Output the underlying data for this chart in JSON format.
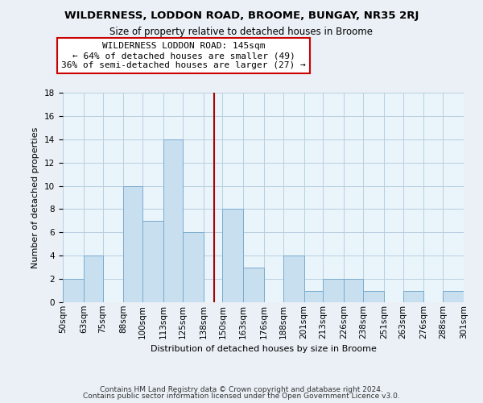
{
  "title": "WILDERNESS, LODDON ROAD, BROOME, BUNGAY, NR35 2RJ",
  "subtitle": "Size of property relative to detached houses in Broome",
  "xlabel": "Distribution of detached houses by size in Broome",
  "ylabel": "Number of detached properties",
  "bin_labels": [
    "50sqm",
    "63sqm",
    "75sqm",
    "88sqm",
    "100sqm",
    "113sqm",
    "125sqm",
    "138sqm",
    "150sqm",
    "163sqm",
    "176sqm",
    "188sqm",
    "201sqm",
    "213sqm",
    "226sqm",
    "238sqm",
    "251sqm",
    "263sqm",
    "276sqm",
    "288sqm",
    "301sqm"
  ],
  "bin_edges": [
    50,
    63,
    75,
    88,
    100,
    113,
    125,
    138,
    150,
    163,
    176,
    188,
    201,
    213,
    226,
    238,
    251,
    263,
    276,
    288,
    301
  ],
  "counts": [
    2,
    4,
    0,
    10,
    7,
    14,
    6,
    0,
    8,
    3,
    0,
    4,
    1,
    2,
    2,
    1,
    0,
    1,
    0,
    1
  ],
  "bar_color": "#c8dff0",
  "bar_edge_color": "#7aabce",
  "ref_line_x": 145,
  "ref_line_color": "#aa0000",
  "annotation_line1": "WILDERNESS LODDON ROAD: 145sqm",
  "annotation_line2": "← 64% of detached houses are smaller (49)",
  "annotation_line3": "36% of semi-detached houses are larger (27) →",
  "annotation_box_edge_color": "#cc0000",
  "annotation_box_bg": "#ffffff",
  "ylim": [
    0,
    18
  ],
  "yticks": [
    0,
    2,
    4,
    6,
    8,
    10,
    12,
    14,
    16,
    18
  ],
  "footer_line1": "Contains HM Land Registry data © Crown copyright and database right 2024.",
  "footer_line2": "Contains public sector information licensed under the Open Government Licence v3.0.",
  "bg_color": "#eaf0f6",
  "plot_bg_color": "#eaf4fb",
  "grid_color": "#b8cfe0",
  "title_fontsize": 9.5,
  "subtitle_fontsize": 8.5,
  "label_fontsize": 8.0,
  "tick_fontsize": 7.5,
  "footer_fontsize": 6.5,
  "annot_fontsize": 8.0
}
